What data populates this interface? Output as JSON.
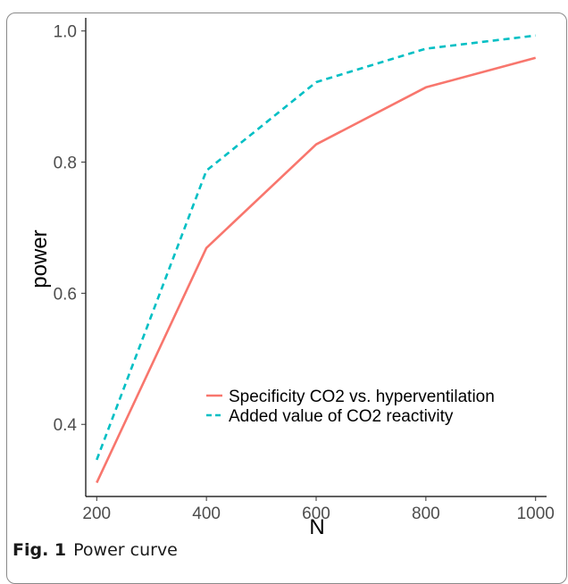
{
  "chart_data": {
    "type": "line",
    "xlabel": "N",
    "ylabel": "power",
    "xlim": [
      180,
      1020
    ],
    "ylim": [
      0.29,
      1.02
    ],
    "x_ticks": [
      200,
      400,
      600,
      800,
      1000
    ],
    "y_ticks": [
      0.4,
      0.6,
      0.8,
      1.0
    ],
    "x_tick_labels": [
      "200",
      "400",
      "600",
      "800",
      "1000"
    ],
    "y_tick_labels": [
      "0.4",
      "0.6",
      "0.8",
      "1.0"
    ],
    "grid": false,
    "legend_position": "bottom-right",
    "series": [
      {
        "name": "Specificity CO2 vs. hyperventilation",
        "color": "#F8766D",
        "dash": "solid",
        "x": [
          200,
          400,
          600,
          800,
          1000
        ],
        "y": [
          0.311,
          0.669,
          0.827,
          0.914,
          0.959
        ]
      },
      {
        "name": "Added value of CO2 reactivity",
        "color": "#00BFC4",
        "dash": "dashed",
        "x": [
          200,
          400,
          600,
          800,
          1000
        ],
        "y": [
          0.346,
          0.787,
          0.922,
          0.973,
          0.993
        ]
      }
    ]
  },
  "caption": {
    "figure_label": "Fig. 1",
    "text": "Power curve"
  }
}
